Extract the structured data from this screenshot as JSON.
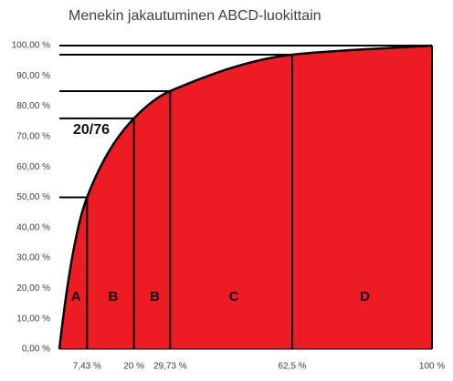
{
  "chart_data": {
    "type": "area",
    "title": "Menekin jakautuminen ABCD-luokittain",
    "x": [
      0,
      7.43,
      20,
      29.73,
      62.5,
      100
    ],
    "values": [
      0,
      50,
      76,
      85,
      97,
      100
    ],
    "color": "#ed1c24",
    "xlim": [
      0,
      100
    ],
    "ylim": [
      0,
      100
    ],
    "xticks": [
      {
        "value": 7.43,
        "label": "7,43 %"
      },
      {
        "value": 20,
        "label": "20 %"
      },
      {
        "value": 29.73,
        "label": "29,73 %"
      },
      {
        "value": 62.5,
        "label": "62,5 %"
      },
      {
        "value": 100,
        "label": "100 %"
      }
    ],
    "yticks": [
      {
        "value": 0,
        "label": "0,00 %"
      },
      {
        "value": 10,
        "label": "10,00 %"
      },
      {
        "value": 20,
        "label": "20,00 %"
      },
      {
        "value": 30,
        "label": "30,00 %"
      },
      {
        "value": 40,
        "label": "40,00 %"
      },
      {
        "value": 50,
        "label": "50,00 %"
      },
      {
        "value": 60,
        "label": "60,00 %"
      },
      {
        "value": 70,
        "label": "70,00 %"
      },
      {
        "value": 80,
        "label": "80,00 %"
      },
      {
        "value": 90,
        "label": "90,00 %"
      },
      {
        "value": 100,
        "label": "100,00 %"
      }
    ],
    "class_labels": [
      "A",
      "B",
      "B",
      "C",
      "D"
    ],
    "annotation": "20/76"
  }
}
